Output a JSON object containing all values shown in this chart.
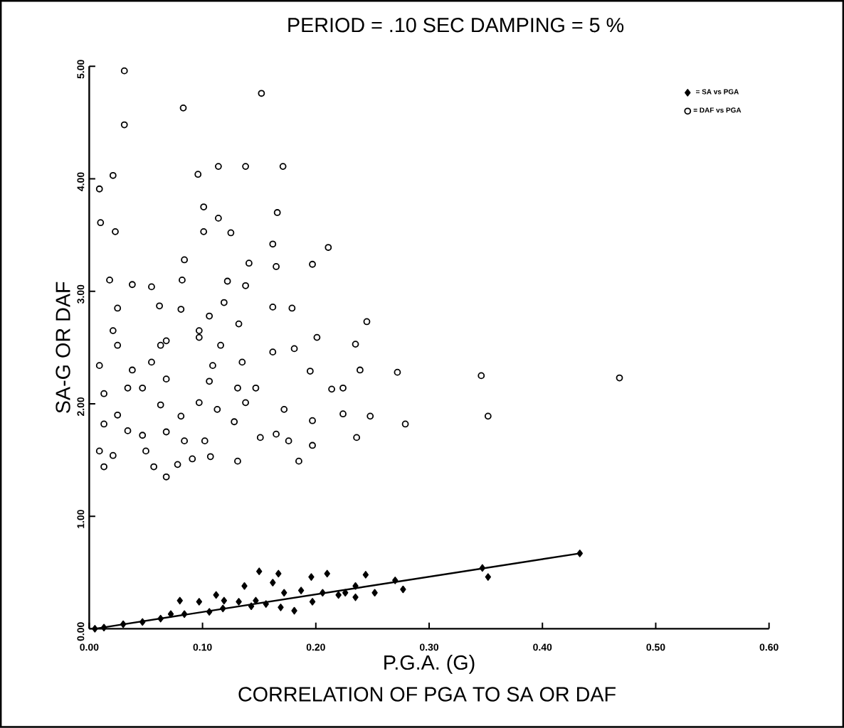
{
  "chart_data": {
    "type": "scatter",
    "title": "PERIOD = .10 SEC   DAMPING =  5 %",
    "xlabel": "P.G.A. (G)",
    "ylabel": "SA-G OR DAF",
    "annotations": [
      "CORRELATION OF PGA TO SA OR DAF"
    ],
    "xlim": [
      0,
      0.6
    ],
    "ylim": [
      0,
      5
    ],
    "xticks": [
      {
        "value": 0,
        "label": "0.00"
      },
      {
        "value": 0.1,
        "label": "0.10"
      },
      {
        "value": 0.2,
        "label": "0.20"
      },
      {
        "value": 0.3,
        "label": "0.30"
      },
      {
        "value": 0.4,
        "label": "0.40"
      },
      {
        "value": 0.5,
        "label": "0.50"
      },
      {
        "value": 0.6,
        "label": "0.60"
      }
    ],
    "yticks": [
      {
        "value": 0,
        "label": "0.00"
      },
      {
        "value": 1,
        "label": "1.00"
      },
      {
        "value": 2,
        "label": "2.00"
      },
      {
        "value": 3,
        "label": "3.00"
      },
      {
        "value": 4,
        "label": "4.00"
      },
      {
        "value": 5,
        "label": "5.00"
      }
    ],
    "legend": "top right",
    "grid": false,
    "series": [
      {
        "name": "= SA vs PGA",
        "color": "#000000",
        "marker": "diamond",
        "x": [
          0.15,
          0.167,
          0.21,
          0.196,
          0.244,
          0.137,
          0.162,
          0.08,
          0.097,
          0.112,
          0.119,
          0.132,
          0.147,
          0.172,
          0.187,
          0.206,
          0.22,
          0.235,
          0.235,
          0.277,
          0.27,
          0.252,
          0.169,
          0.181,
          0.156,
          0.106,
          0.084,
          0.063,
          0.047,
          0.03,
          0.013,
          0.005,
          0.072,
          0.118,
          0.143,
          0.197,
          0.226,
          0.347,
          0.352,
          0.433
        ],
        "values": [
          0.51,
          0.49,
          0.49,
          0.46,
          0.48,
          0.38,
          0.41,
          0.25,
          0.24,
          0.3,
          0.25,
          0.24,
          0.25,
          0.32,
          0.34,
          0.32,
          0.3,
          0.28,
          0.38,
          0.35,
          0.43,
          0.32,
          0.19,
          0.16,
          0.22,
          0.15,
          0.13,
          0.09,
          0.06,
          0.04,
          0.01,
          0.0,
          0.13,
          0.18,
          0.2,
          0.24,
          0.32,
          0.54,
          0.46,
          0.67
        ]
      },
      {
        "name": "= DAF vs PGA",
        "color": "#000000",
        "marker": "circle",
        "x": [
          0.031,
          0.031,
          0.083,
          0.152,
          0.021,
          0.009,
          0.096,
          0.114,
          0.138,
          0.171,
          0.101,
          0.114,
          0.166,
          0.01,
          0.023,
          0.101,
          0.125,
          0.162,
          0.211,
          0.084,
          0.141,
          0.165,
          0.197,
          0.018,
          0.038,
          0.055,
          0.082,
          0.122,
          0.138,
          0.062,
          0.025,
          0.081,
          0.119,
          0.162,
          0.179,
          0.245,
          0.132,
          0.106,
          0.021,
          0.068,
          0.097,
          0.116,
          0.201,
          0.235,
          0.181,
          0.162,
          0.195,
          0.239,
          0.272,
          0.346,
          0.214,
          0.224,
          0.224,
          0.248,
          0.279,
          0.236,
          0.197,
          0.197,
          0.185,
          0.165,
          0.176,
          0.151,
          0.131,
          0.107,
          0.102,
          0.084,
          0.068,
          0.068,
          0.057,
          0.078,
          0.091,
          0.05,
          0.047,
          0.034,
          0.013,
          0.009,
          0.021,
          0.013,
          0.025,
          0.013,
          0.034,
          0.047,
          0.063,
          0.081,
          0.097,
          0.113,
          0.128,
          0.147,
          0.138,
          0.172,
          0.106,
          0.131,
          0.109,
          0.135,
          0.068,
          0.055,
          0.038,
          0.009,
          0.025,
          0.063,
          0.097,
          0.352,
          0.468
        ],
        "values": [
          4.96,
          4.48,
          4.63,
          4.76,
          4.03,
          3.91,
          4.04,
          4.11,
          4.11,
          4.11,
          3.75,
          3.65,
          3.7,
          3.61,
          3.53,
          3.53,
          3.52,
          3.42,
          3.39,
          3.28,
          3.25,
          3.22,
          3.24,
          3.1,
          3.06,
          3.04,
          3.1,
          3.09,
          3.05,
          2.87,
          2.85,
          2.84,
          2.9,
          2.86,
          2.85,
          2.73,
          2.71,
          2.78,
          2.65,
          2.56,
          2.59,
          2.52,
          2.59,
          2.53,
          2.49,
          2.46,
          2.29,
          2.3,
          2.28,
          2.25,
          2.13,
          2.14,
          1.91,
          1.89,
          1.82,
          1.7,
          1.85,
          1.63,
          1.49,
          1.73,
          1.67,
          1.7,
          1.49,
          1.53,
          1.67,
          1.67,
          1.75,
          1.35,
          1.44,
          1.46,
          1.51,
          1.58,
          1.72,
          1.76,
          1.44,
          1.58,
          1.54,
          1.82,
          1.9,
          2.09,
          2.14,
          2.14,
          1.99,
          1.89,
          2.01,
          1.95,
          1.84,
          2.14,
          2.01,
          1.95,
          2.2,
          2.14,
          2.34,
          2.37,
          2.22,
          2.37,
          2.3,
          2.34,
          2.52,
          2.52,
          2.65,
          1.89,
          2.23
        ]
      },
      {
        "type": "line",
        "color": "#000000",
        "marker": "none",
        "x": [
          0.005,
          0.433
        ],
        "values": [
          0.0,
          0.67
        ]
      }
    ]
  }
}
